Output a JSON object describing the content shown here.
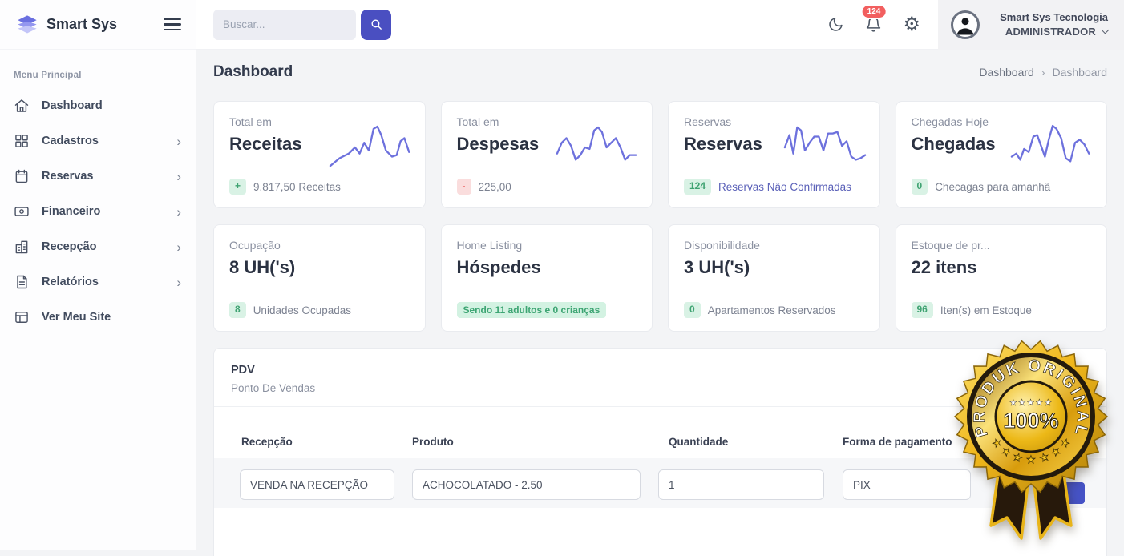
{
  "brand": {
    "name": "Smart Sys"
  },
  "sidebar": {
    "section_label": "Menu Principal",
    "items": [
      {
        "label": "Dashboard"
      },
      {
        "label": "Cadastros"
      },
      {
        "label": "Reservas"
      },
      {
        "label": "Financeiro"
      },
      {
        "label": "Recepção"
      },
      {
        "label": "Relatórios"
      },
      {
        "label": "Ver Meu Site"
      }
    ]
  },
  "topbar": {
    "search_placeholder": "Buscar...",
    "notification_count": "124",
    "user_org": "Smart Sys Tecnologia",
    "user_role": "ADMINISTRADOR"
  },
  "page": {
    "title": "Dashboard",
    "breadcrumb_parent": "Dashboard",
    "breadcrumb_separator": "›",
    "breadcrumb_current": "Dashboard"
  },
  "stats": [
    {
      "kicker": "Total em",
      "title": "Receitas",
      "badge": "+",
      "footer": "9.817,50 Receitas"
    },
    {
      "kicker": "Total em",
      "title": "Despesas",
      "badge": "-",
      "footer": "225,00"
    },
    {
      "kicker": "Reservas",
      "title": "Reservas",
      "badge": "124",
      "footer": "Reservas Não Confirmadas"
    },
    {
      "kicker": "Chegadas Hoje",
      "title": "Chegadas",
      "badge": "0",
      "footer": "Checagas para amanhã"
    },
    {
      "kicker": "Ocupação",
      "title": "8 UH('s)",
      "badge": "8",
      "footer": "Unidades Ocupadas"
    },
    {
      "kicker": "Home Listing",
      "title": "Hóspedes",
      "pill": "Sendo 11 adultos e 0 crianças"
    },
    {
      "kicker": "Disponibilidade",
      "title": "3 UH('s)",
      "badge": "0",
      "footer": "Apartamentos Reservados"
    },
    {
      "kicker": "Estoque de pr...",
      "title": "22 itens",
      "badge": "96",
      "footer": "Iten(s) em Estoque"
    }
  ],
  "pdv": {
    "title": "PDV",
    "subtitle": "Ponto De Vendas",
    "columns": [
      "Recepção",
      "Produto",
      "Quantidade",
      "Forma de pagamento"
    ],
    "row": {
      "recepcao": "VENDA NA RECEPÇÃO",
      "produto": "ACHOCOLATADO - 2.50",
      "quantidade": "1",
      "pagamento": "PIX"
    }
  },
  "seal": {
    "arc_text": "PRODUK ORIGINAL",
    "center_text": "100%",
    "stars_top": "★★★★★",
    "star": "★"
  },
  "icons": {
    "chevron_right": "›",
    "gear": "⚙"
  },
  "colors": {
    "accent": "#4a4fc1",
    "sparkline": "#6d71dd",
    "notification_red": "#f25f5f",
    "green_badge_bg": "#d9f2e5",
    "green_badge_text": "#3fa372",
    "red_badge_bg": "#fadddd",
    "red_badge_text": "#ef8080",
    "link_indigo": "#5a60b8",
    "seal_gold": "#f0b71c"
  }
}
